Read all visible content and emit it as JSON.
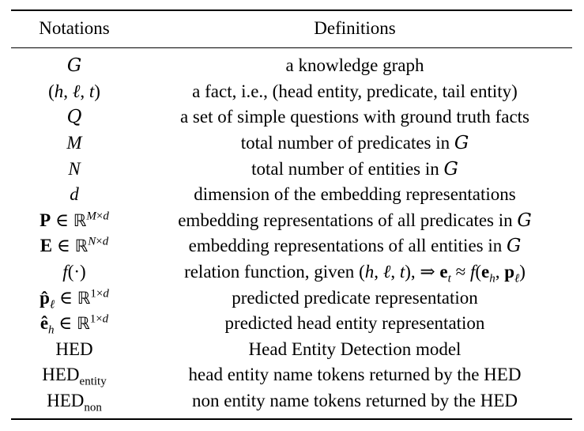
{
  "table": {
    "headers": {
      "notations": "Notations",
      "definitions": "Definitions"
    },
    "rows": [
      {
        "notation": "G",
        "definition": "a knowledge graph"
      },
      {
        "notation": "(h, ℓ, t)",
        "definition": "a fact, i.e., (head entity, predicate, tail entity)"
      },
      {
        "notation": "Q",
        "definition": "a set of simple questions with ground truth facts"
      },
      {
        "notation": "M",
        "definition": "total number of predicates in G"
      },
      {
        "notation": "N",
        "definition": "total number of entities in G"
      },
      {
        "notation": "d",
        "definition": "dimension of the embedding representations"
      },
      {
        "notation": "P ∈ ℝ^(M×d)",
        "definition": "embedding representations of all predicates in G"
      },
      {
        "notation": "E ∈ ℝ^(N×d)",
        "definition": "embedding representations of all entities in G"
      },
      {
        "notation": "f(·)",
        "definition": "relation function, given (h, ℓ, t), ⇒ e_t ≈ f(e_h, p_ℓ)"
      },
      {
        "notation": "p̂_ℓ ∈ ℝ^(1×d)",
        "definition": "predicted predicate representation"
      },
      {
        "notation": "ê_h ∈ ℝ^(1×d)",
        "definition": "predicted head entity representation"
      },
      {
        "notation": "HED",
        "definition": "Head Entity Detection model"
      },
      {
        "notation": "HED_entity",
        "definition": "head entity name tokens returned by the HED"
      },
      {
        "notation": "HED_non",
        "definition": "non entity name tokens returned by the HED"
      }
    ]
  },
  "math": {
    "G": "G",
    "Q": "Q",
    "M": "M",
    "N": "N",
    "d": "d",
    "h": "h",
    "l": "ℓ",
    "t": "t",
    "f": "f",
    "P": "P",
    "E": "E",
    "e": "e",
    "p": "p",
    "R": "ℝ",
    "in": "∈",
    "approx": "≈",
    "implies": "⇒",
    "times": "×",
    "one": "1",
    "cdot": "·",
    "hat_p": "p̂",
    "hat_e": "ê",
    "HED": "HED",
    "entity": "entity",
    "non": "non"
  },
  "text": {
    "def_G": "a knowledge graph",
    "def_fact_pre": "a fact, i.e., (head entity, predicate, tail entity)",
    "def_Q": "a set of simple questions with ground truth facts",
    "def_M": "total number of predicates in",
    "def_N": "total number of entities in",
    "def_d": "dimension of the embedding representations",
    "def_P": "embedding representations of all predicates in",
    "def_E": "embedding representations of all entities in",
    "def_f": "relation function, given",
    "def_phat": "predicted predicate representation",
    "def_ehat": "predicted head entity representation",
    "def_HED": "Head Entity Detection model",
    "def_HEDentity": "head entity name tokens returned by the HED",
    "def_HEDnon": "non entity name tokens returned by the HED"
  }
}
